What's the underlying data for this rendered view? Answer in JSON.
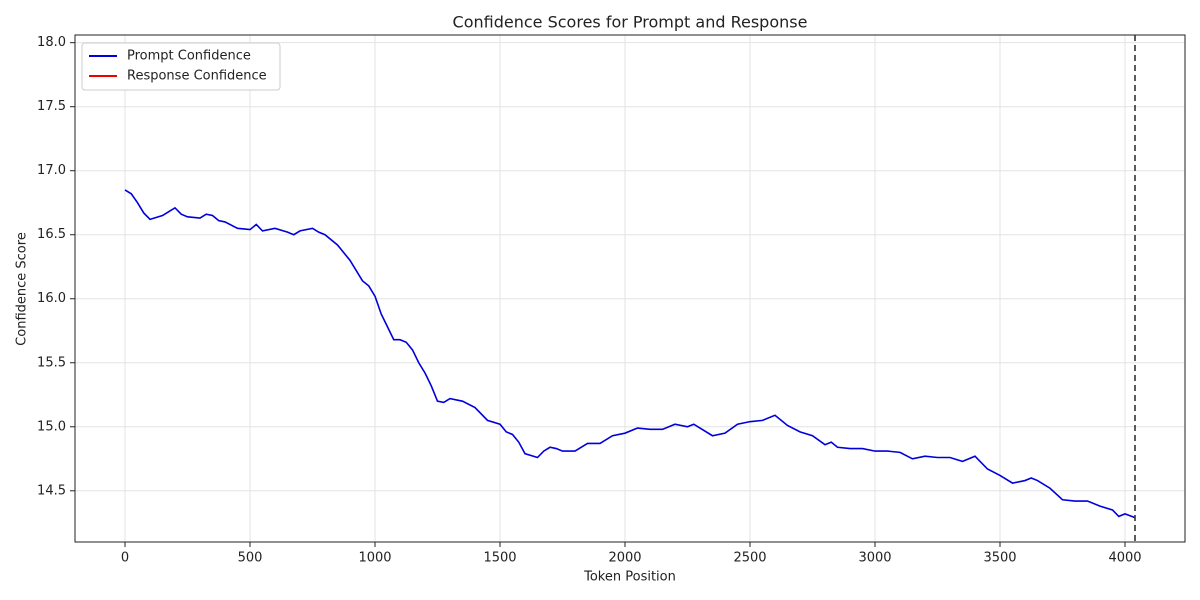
{
  "chart_data": {
    "type": "line",
    "title": "Confidence Scores for Prompt and Response",
    "x_label": "Token Position",
    "y_label": "Confidence Score",
    "xlim": [
      -200,
      4240
    ],
    "ylim": [
      14.1,
      18.06
    ],
    "xticks": [
      0,
      500,
      1000,
      1500,
      2000,
      2500,
      3000,
      3500,
      4000
    ],
    "yticks": [
      14.5,
      {
        "value": 15,
        "label": "15.0"
      },
      15.5,
      {
        "value": 16,
        "label": "16.0"
      },
      16.5,
      {
        "value": 17,
        "label": "17.0"
      },
      17.5,
      {
        "value": 18,
        "label": "18.0"
      }
    ],
    "grid": true,
    "legend": "upper-left",
    "vline": 4040,
    "vline_color": "#333333",
    "series": [
      {
        "name": "Prompt Confidence",
        "color": "#0000dd",
        "x": [
          0,
          25,
          50,
          75,
          100,
          150,
          175,
          200,
          225,
          250,
          300,
          325,
          350,
          375,
          400,
          450,
          500,
          525,
          550,
          600,
          650,
          675,
          700,
          750,
          775,
          800,
          850,
          900,
          950,
          975,
          1000,
          1025,
          1050,
          1075,
          1100,
          1125,
          1150,
          1175,
          1200,
          1225,
          1250,
          1275,
          1300,
          1350,
          1400,
          1450,
          1500,
          1525,
          1550,
          1575,
          1600,
          1650,
          1675,
          1700,
          1725,
          1750,
          1800,
          1850,
          1900,
          1950,
          2000,
          2050,
          2100,
          2150,
          2200,
          2250,
          2275,
          2300,
          2350,
          2400,
          2450,
          2500,
          2550,
          2600,
          2650,
          2700,
          2750,
          2800,
          2825,
          2850,
          2900,
          2950,
          3000,
          3050,
          3100,
          3150,
          3200,
          3250,
          3300,
          3350,
          3400,
          3450,
          3500,
          3550,
          3600,
          3625,
          3650,
          3700,
          3750,
          3800,
          3850,
          3900,
          3950,
          3975,
          4000,
          4040
        ],
        "values": [
          16.85,
          16.82,
          16.75,
          16.67,
          16.62,
          16.65,
          16.68,
          16.71,
          16.66,
          16.64,
          16.63,
          16.66,
          16.65,
          16.61,
          16.6,
          16.55,
          16.54,
          16.58,
          16.53,
          16.55,
          16.52,
          16.5,
          16.53,
          16.55,
          16.52,
          16.5,
          16.42,
          16.3,
          16.14,
          16.1,
          16.02,
          15.88,
          15.78,
          15.68,
          15.68,
          15.66,
          15.6,
          15.5,
          15.42,
          15.32,
          15.2,
          15.19,
          15.22,
          15.2,
          15.15,
          15.05,
          15.02,
          14.96,
          14.94,
          14.88,
          14.79,
          14.76,
          14.81,
          14.84,
          14.83,
          14.81,
          14.81,
          14.87,
          14.87,
          14.93,
          14.95,
          14.99,
          14.98,
          14.98,
          15.02,
          15,
          15.02,
          14.99,
          14.93,
          14.95,
          15.02,
          15.04,
          15.05,
          15.09,
          15.01,
          14.96,
          14.93,
          14.86,
          14.88,
          14.84,
          14.83,
          14.83,
          14.81,
          14.81,
          14.8,
          14.75,
          14.77,
          14.76,
          14.76,
          14.73,
          14.77,
          14.67,
          14.62,
          14.56,
          14.58,
          14.6,
          14.58,
          14.52,
          14.43,
          14.42,
          14.42,
          14.38,
          14.35,
          14.3,
          14.32,
          14.29
        ]
      },
      {
        "name": "Response Confidence",
        "color": "#ee0000",
        "x": [],
        "values": []
      }
    ]
  }
}
